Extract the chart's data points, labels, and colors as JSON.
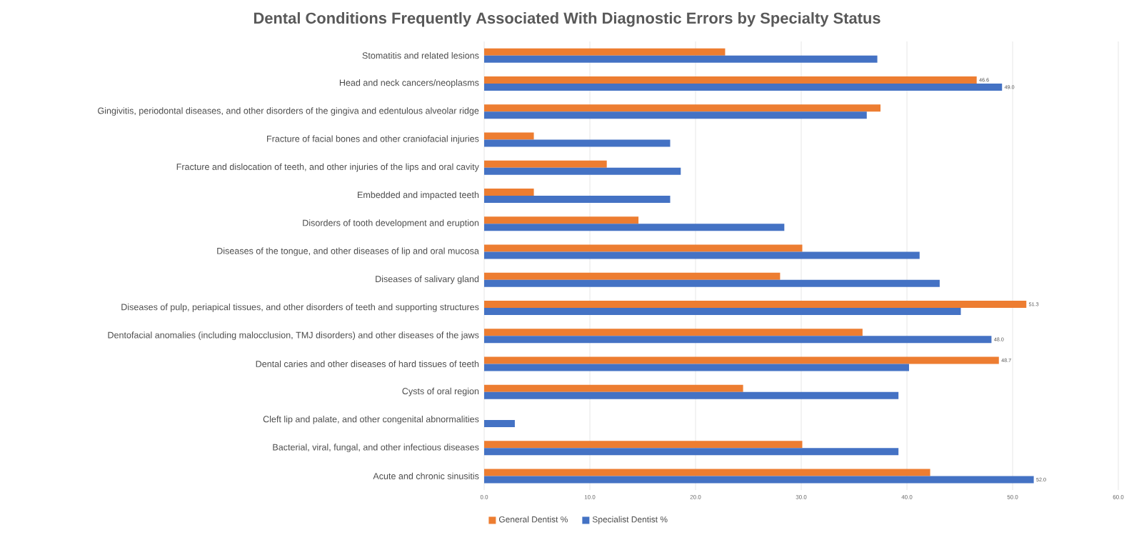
{
  "chart_data": {
    "type": "bar",
    "orientation": "horizontal",
    "title": "Dental Conditions Frequently Associated With Diagnostic Errors by Specialty Status",
    "categories": [
      "Stomatitis and related lesions",
      "Head and neck cancers/neoplasms",
      "Gingivitis, periodontal diseases, and other disorders of the gingiva and edentulous alveolar ridge",
      "Fracture of facial bones and other craniofacial injuries",
      "Fracture and dislocation of teeth, and other injuries of the lips and oral cavity",
      "Embedded and impacted teeth",
      "Disorders of tooth development and eruption",
      "Diseases of the tongue, and other diseases of lip and oral mucosa",
      "Diseases of salivary gland",
      "Diseases of pulp, periapical tissues, and other disorders of teeth and supporting structures",
      "Dentofacial anomalies (including malocclusion, TMJ disorders) and other diseases of the jaws",
      "Dental caries and other diseases of hard tissues of teeth",
      "Cysts of oral region",
      "Cleft lip and palate, and other congenital abnormalities",
      "Bacterial, viral, fungal, and other infectious diseases",
      "Acute and chronic sinusitis"
    ],
    "series": [
      {
        "name": "General Dentist %",
        "color": "#ed7d31",
        "values": [
          22.8,
          46.6,
          37.5,
          4.7,
          11.6,
          4.7,
          14.6,
          30.1,
          28.0,
          51.3,
          35.8,
          48.7,
          24.5,
          0,
          30.1,
          42.2
        ],
        "value_labels": [
          null,
          "46.6",
          null,
          null,
          null,
          null,
          null,
          null,
          null,
          "51.3",
          null,
          "48.7",
          null,
          null,
          null,
          null
        ]
      },
      {
        "name": "Specialist Dentist %",
        "color": "#4472c4",
        "values": [
          37.2,
          49.0,
          36.2,
          17.6,
          18.6,
          17.6,
          28.4,
          41.2,
          43.1,
          45.1,
          48.0,
          40.2,
          39.2,
          2.9,
          39.2,
          52.0
        ],
        "value_labels": [
          null,
          "49.0",
          null,
          null,
          null,
          null,
          null,
          null,
          null,
          null,
          "48.0",
          null,
          null,
          null,
          null,
          "52.0"
        ]
      }
    ],
    "xlim": [
      0,
      60
    ],
    "xticks": [
      {
        "value": 0,
        "label": "0.0"
      },
      {
        "value": 10,
        "label": "10.0"
      },
      {
        "value": 20,
        "label": "20.0"
      },
      {
        "value": 30,
        "label": "30.0"
      },
      {
        "value": 40,
        "label": "40.0"
      },
      {
        "value": 50,
        "label": "50.0"
      },
      {
        "value": 60,
        "label": "60.0"
      }
    ],
    "grid": "x",
    "legend": "bottom left"
  }
}
